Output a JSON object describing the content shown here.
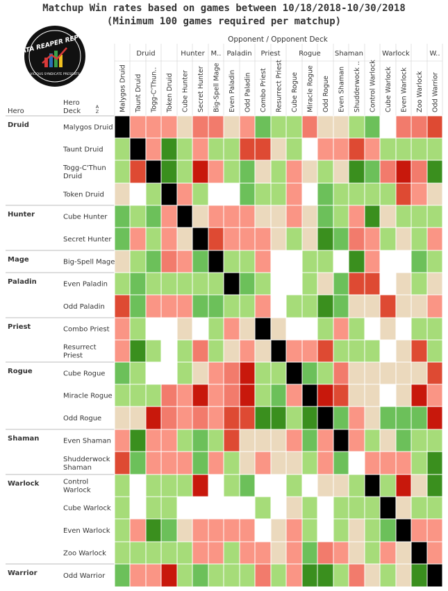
{
  "title": "Matchup Win rates based on games between 10/18/2018-10/30/2018",
  "subtitle": "(Minimum 100 games required per matchup)",
  "logo": {
    "text": "DATA REAPER REPORT",
    "subtext": "VICIOUS SYNDICATE PRESENTS",
    "icon": "bar-chart-icon",
    "colors": {
      "badge": "#111111",
      "ring": "#ffffff",
      "red": "#d93a3a",
      "blue": "#2a6fb5",
      "green": "#3aa04a",
      "yellow": "#f0c020"
    }
  },
  "headers": {
    "opponent": "Opponent  /  Opponent Deck",
    "hero": "Hero",
    "deck": "Hero\nDeck",
    "sort_icon": "sort-az-icon",
    "sort_label": "A Z"
  },
  "colors": {
    "dark_red": "#c8180c",
    "red": "#de4a33",
    "salmon": "#f27b6c",
    "light_salmon": "#fa9585",
    "beige": "#ebd9bd",
    "light_green": "#a6dc79",
    "green": "#6cc05a",
    "dark_green": "#3a8f1e",
    "mirror": "#000000",
    "empty": "#ffffff",
    "grid": "#d0d0d0"
  },
  "chart_data": {
    "type": "heatmap",
    "title": "Matchup Win rates based on games between 10/18/2018-10/30/2018",
    "subtitle": "(Minimum 100 games required per matchup)",
    "xlabel": "Opponent  /  Opponent Deck",
    "ylabel": "Hero / Hero Deck",
    "legend": "none",
    "classes": [
      "Druid",
      "Hunter",
      "Mage",
      "Paladin",
      "Priest",
      "Rogue",
      "Shaman",
      "Warlock",
      "Warrior"
    ],
    "class_labels": [
      "Druid",
      "Hunter",
      "M..",
      "Paladin",
      "Priest",
      "Rogue",
      "Shaman",
      "Warlock",
      "W.."
    ],
    "decks": [
      {
        "name": "Malygos Druid",
        "row_label": "Malygos Druid",
        "hero": "Druid"
      },
      {
        "name": "Taunt Druid",
        "row_label": "Taunt Druid",
        "hero": "Druid"
      },
      {
        "name": "Togg-C'Thun..",
        "row_label": "Togg-C'Thun\nDruid",
        "hero": "Druid"
      },
      {
        "name": "Token Druid",
        "row_label": "Token Druid",
        "hero": "Druid"
      },
      {
        "name": "Cube Hunter",
        "row_label": "Cube Hunter",
        "hero": "Hunter"
      },
      {
        "name": "Secret Hunter",
        "row_label": "Secret Hunter",
        "hero": "Hunter"
      },
      {
        "name": "Big-Spell Mage",
        "row_label": "Big-Spell Mage",
        "hero": "Mage"
      },
      {
        "name": "Even Paladin",
        "row_label": "Even Paladin",
        "hero": "Paladin"
      },
      {
        "name": "Odd Paladin",
        "row_label": "Odd Paladin",
        "hero": "Paladin"
      },
      {
        "name": "Combo Priest",
        "row_label": "Combo Priest",
        "hero": "Priest"
      },
      {
        "name": "Resurrect Priest",
        "row_label": "Resurrect\nPriest",
        "hero": "Priest"
      },
      {
        "name": "Cube Rogue",
        "row_label": "Cube Rogue",
        "hero": "Rogue"
      },
      {
        "name": "Miracle Rogue",
        "row_label": "Miracle Rogue",
        "hero": "Rogue"
      },
      {
        "name": "Odd Rogue",
        "row_label": "Odd Rogue",
        "hero": "Rogue"
      },
      {
        "name": "Even Shaman",
        "row_label": "Even Shaman",
        "hero": "Shaman"
      },
      {
        "name": "Shudderwock ..",
        "row_label": "Shudderwock\nShaman",
        "hero": "Shaman"
      },
      {
        "name": "Control Warlock",
        "row_label": "Control\nWarlock",
        "hero": "Warlock"
      },
      {
        "name": "Cube Warlock",
        "row_label": "Cube Warlock",
        "hero": "Warlock"
      },
      {
        "name": "Even Warlock",
        "row_label": "Even Warlock",
        "hero": "Warlock"
      },
      {
        "name": "Zoo Warlock",
        "row_label": "Zoo Warlock",
        "hero": "Warlock"
      },
      {
        "name": "Odd Warrior",
        "row_label": "Odd Warrior",
        "hero": "Warrior"
      }
    ],
    "color_key": {
      "K": "mirror",
      "_": "no data",
      "D": "dark red",
      "R": "red",
      "S": "salmon",
      "s": "light salmon",
      "b": "beige",
      "l": "light green",
      "g": "green",
      "G": "dark green"
    },
    "cells": [
      "KsssbSSbsgllSbblg_SSR",
      "lKsGlsllRRbl_ssRsllll",
      "lRKGlDslgblsblbGgSDSG",
      "b_lKsl__glls_gllllRsb",
      "glgsKbsssbbsbglsGblll",
      "gslsbKRsssblbGgSslbls",
      "blgSsgKlls__ll_Gs__gl",
      "lglllllKgl__lbgRR_blb",
      "Rgsssgglls_llGgbbRbbs",
      "sl__b_lsbKb__lsl_b_ll",
      "sGl_lSlbsbKssRlll_bRl",
      "gl__lbsSDllKglSbbbbbR",
      "lllSsDsSDlgsKDRbb_bDs",
      "bbDSsSsRRGGlGKgsbgggD",
      "sGsslglRbbbsgsKslbgll",
      "Rgsssgslbsbblsg_ssslG",
      "l_lllD_lg__l_bblKlDbG",
      "l_ll_____l_bl_lllKbll",
      "lsGgbssss_bsl_lblgKss",
      "lllllsslssbsgSsblsbKs",
      "gssDlglllSlsGGlSblbGK"
    ]
  }
}
